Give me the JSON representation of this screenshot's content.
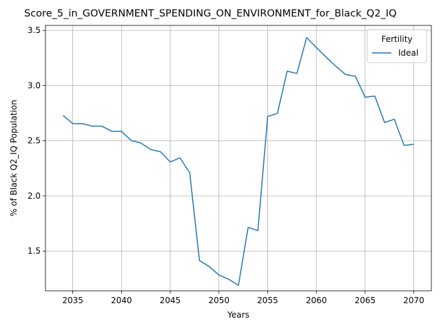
{
  "chart_data": {
    "type": "line",
    "title": "Score_5_in_GOVERNMENT_SPENDING_ON_ENVIRONMENT_for_Black_Q2_IQ",
    "xlabel": "Years",
    "ylabel": "% of Black Q2_IQ Population",
    "xlim": [
      2032.2,
      2071.8
    ],
    "ylim": [
      1.14,
      3.545
    ],
    "xticks": [
      2035,
      2040,
      2045,
      2050,
      2055,
      2060,
      2065,
      2070
    ],
    "yticks": [
      1.5,
      2.0,
      2.5,
      3.0,
      3.5
    ],
    "xtick_labels": [
      "2035",
      "2040",
      "2045",
      "2050",
      "2055",
      "2060",
      "2065",
      "2070"
    ],
    "ytick_labels": [
      "1.5",
      "2.0",
      "2.5",
      "3.0",
      "3.5"
    ],
    "grid": true,
    "legend": {
      "title": "Fertility",
      "placement": "top-right"
    },
    "series": [
      {
        "name": "Ideal",
        "color": "#1f77b4",
        "x": [
          2034,
          2035,
          2036,
          2037,
          2038,
          2039,
          2040,
          2041,
          2042,
          2043,
          2044,
          2045,
          2046,
          2047,
          2048,
          2049,
          2050,
          2051,
          2052,
          2053,
          2054,
          2055,
          2056,
          2057,
          2058,
          2059,
          2060,
          2061,
          2062,
          2063,
          2064,
          2065,
          2066,
          2067,
          2068,
          2069,
          2070
        ],
        "y": [
          2.73,
          2.655,
          2.655,
          2.632,
          2.632,
          2.585,
          2.585,
          2.502,
          2.479,
          2.42,
          2.4,
          2.308,
          2.345,
          2.21,
          1.415,
          1.36,
          1.283,
          1.245,
          1.19,
          1.715,
          1.685,
          2.72,
          2.748,
          3.13,
          3.11,
          3.435,
          3.345,
          3.258,
          3.175,
          3.1,
          3.085,
          2.895,
          2.905,
          2.665,
          2.695,
          2.458,
          2.468
        ]
      }
    ]
  }
}
